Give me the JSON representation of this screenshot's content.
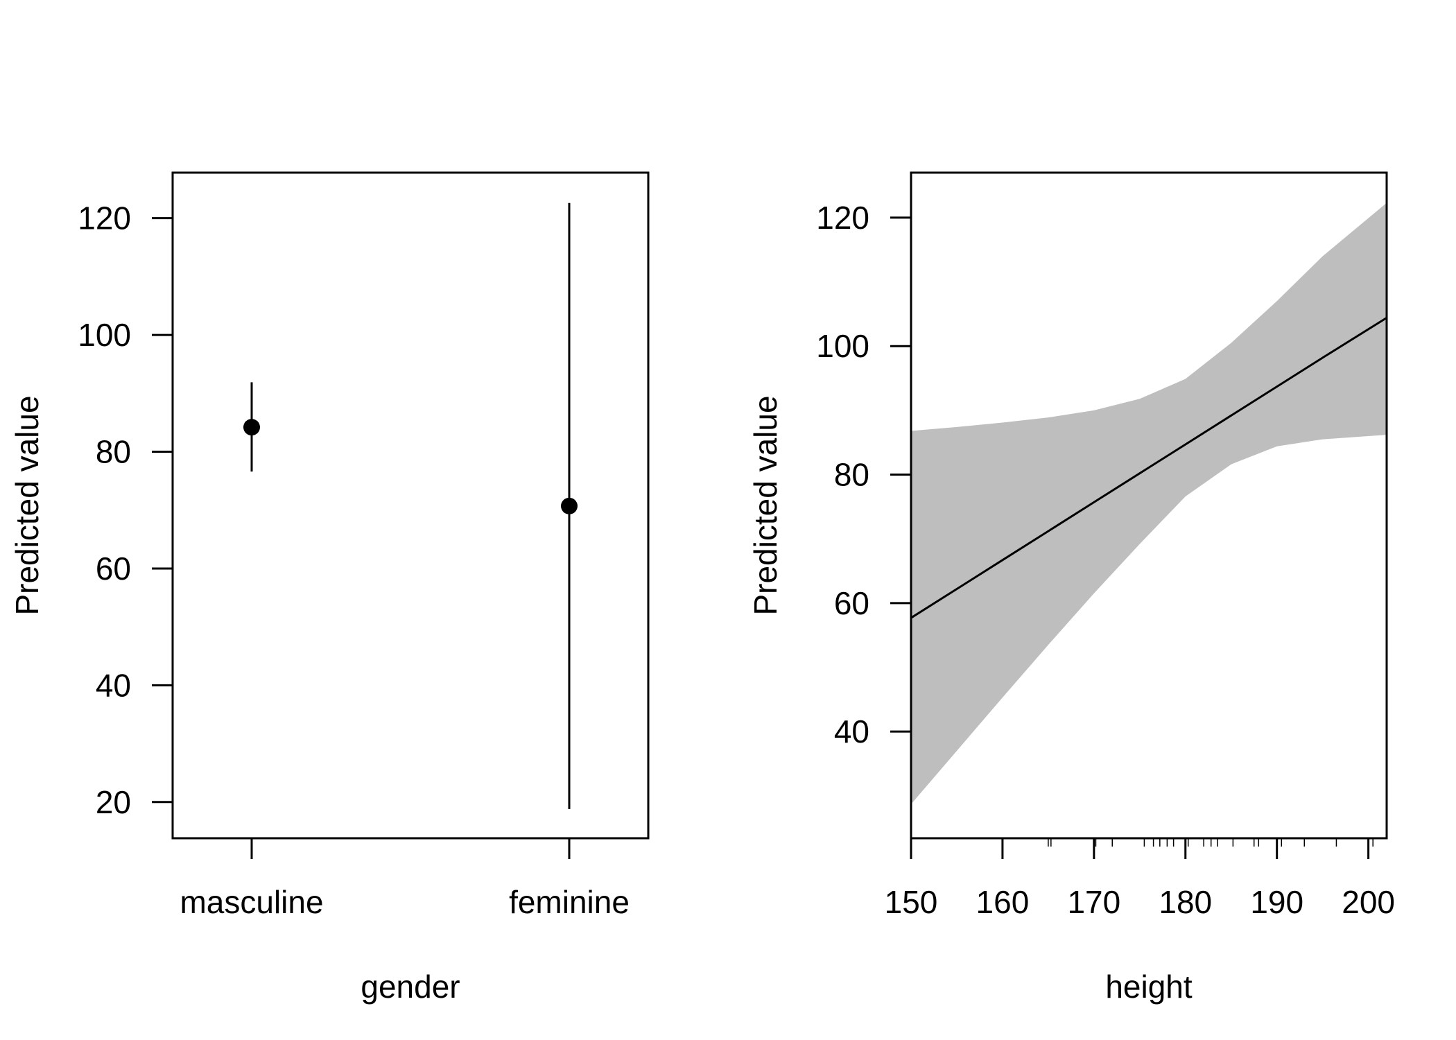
{
  "chart_data": [
    {
      "type": "scatter",
      "xlabel": "gender",
      "ylabel": "Predicted value",
      "categories": [
        "masculine",
        "feminine"
      ],
      "estimates": [
        84.2,
        70.7
      ],
      "lower": [
        76.6,
        18.8
      ],
      "upper": [
        91.9,
        122.6
      ],
      "ylim": [
        13.8,
        127.8
      ],
      "yticks": [
        20,
        40,
        60,
        80,
        100,
        120
      ],
      "grid": false
    },
    {
      "type": "line",
      "xlabel": "height",
      "ylabel": "Predicted value",
      "x": [
        150,
        155,
        160,
        165,
        170,
        175,
        180,
        185,
        190,
        195,
        202
      ],
      "fit": [
        57.7,
        62.2,
        66.7,
        71.2,
        75.7,
        80.2,
        84.7,
        89.2,
        93.7,
        98.2,
        104.4
      ],
      "lower": [
        28.7,
        37.0,
        45.3,
        53.5,
        61.5,
        69.2,
        76.6,
        81.6,
        84.4,
        85.5,
        86.2
      ],
      "upper": [
        86.8,
        87.4,
        88.1,
        88.9,
        90.0,
        91.8,
        94.9,
        100.5,
        107.0,
        114.0,
        122.3
      ],
      "ylim": [
        23.4,
        127.0
      ],
      "xlim": [
        150,
        202
      ],
      "xticks": [
        150,
        160,
        170,
        180,
        190,
        200
      ],
      "yticks": [
        40,
        60,
        80,
        100,
        120
      ],
      "rug": [
        165,
        165.3,
        170.2,
        172,
        175.5,
        176.5,
        177.2,
        178,
        178.7,
        180.3,
        182,
        182.8,
        183.5,
        185.2,
        187.5,
        188,
        190.5,
        193,
        196.5,
        200.5
      ],
      "band_color": "#bebebe",
      "grid": false
    }
  ]
}
